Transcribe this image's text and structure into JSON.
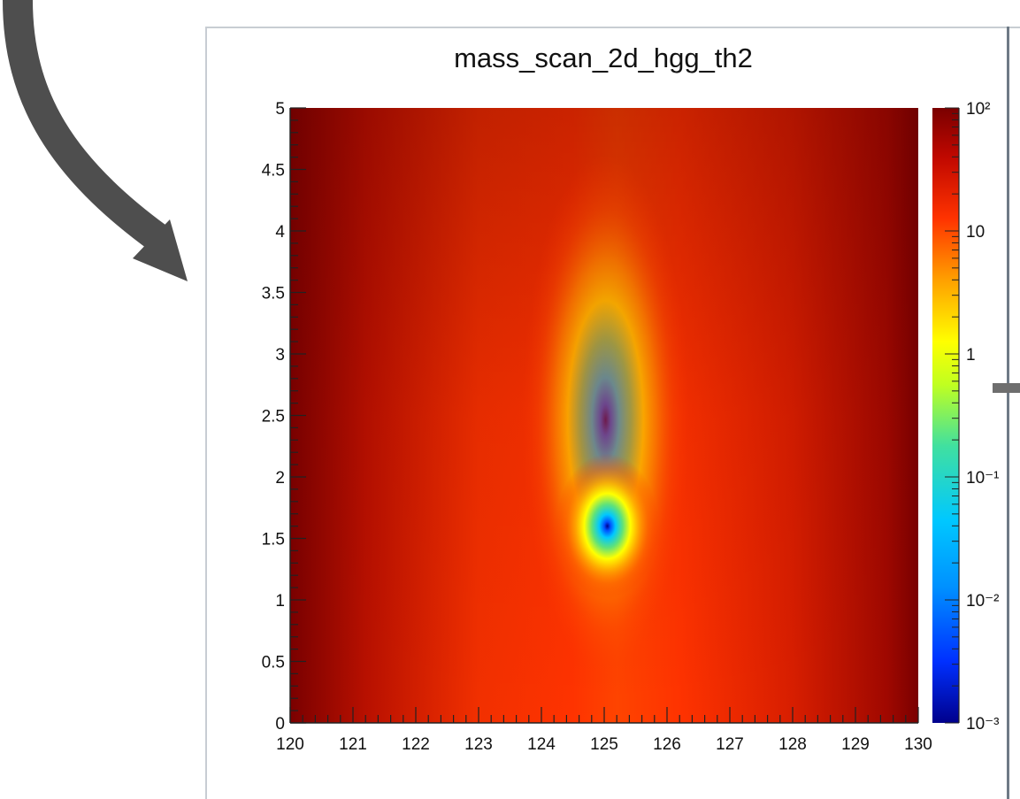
{
  "chart_data": {
    "type": "heatmap",
    "title": "mass_scan_2d_hgg_th2",
    "xlim": [
      120,
      130
    ],
    "ylim": [
      0,
      5
    ],
    "x_ticks": [
      "120",
      "121",
      "122",
      "123",
      "124",
      "125",
      "126",
      "127",
      "128",
      "129",
      "130"
    ],
    "y_ticks": [
      "0",
      "0.5",
      "1",
      "1.5",
      "2",
      "2.5",
      "3",
      "3.5",
      "4",
      "4.5",
      "5"
    ],
    "z_scale": "log",
    "zlim": [
      0.001,
      100
    ],
    "z_ticks": [
      "10⁻³",
      "10⁻²",
      "10⁻¹",
      "1",
      "10",
      "10²"
    ],
    "minimum": {
      "x": 125.05,
      "y": 1.6
    },
    "colors": {
      "low": "#00008c",
      "mid_low": "#00c8ff",
      "mid": "#ffff00",
      "mid_high": "#ff3300",
      "high": "#7a0000"
    }
  }
}
